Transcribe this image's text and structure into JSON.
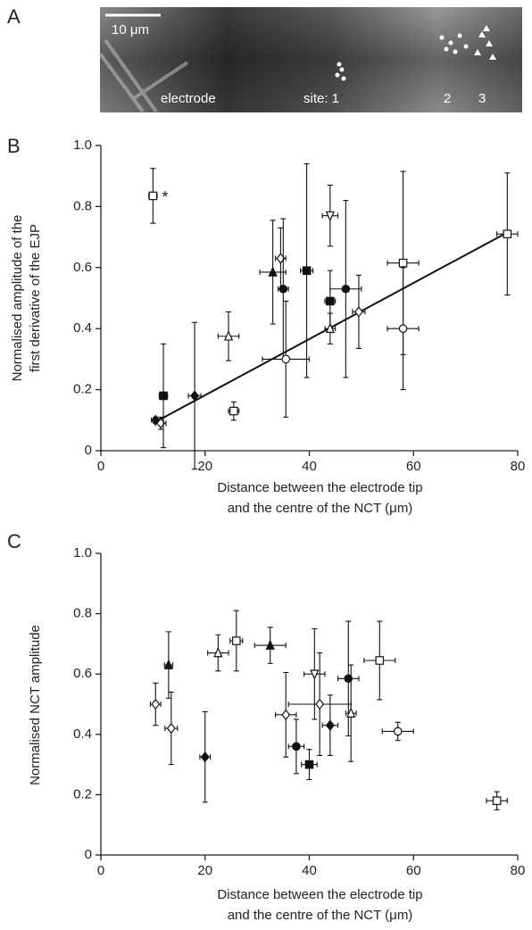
{
  "panel_a": {
    "panel_label": "A",
    "scale_bar": "10 μm",
    "labels": [
      "electrode",
      "site: 1",
      "2",
      "3"
    ]
  },
  "chart_data": [
    {
      "type": "scatter",
      "panel_label": "B",
      "y_label": [
        "Normalised amplitude of the",
        "first derivative of the EJP"
      ],
      "x_label": [
        "Distance between the electrode tip",
        "and the centre of the NCT (μm)"
      ],
      "annotation": "*",
      "xlim": [
        0,
        80
      ],
      "xticks": [
        0,
        20,
        40,
        60,
        80
      ],
      "ylim": [
        0,
        1
      ],
      "yticks": [
        0,
        {
          "value": 0.2,
          "label": "0.2"
        },
        {
          "value": 0.4,
          "label": "0.4"
        },
        {
          "value": 0.6,
          "label": "0.6"
        },
        {
          "value": 0.8,
          "label": "0.8"
        },
        {
          "value": 1,
          "label": "1.0"
        }
      ],
      "color": "#111",
      "series": [
        {
          "x": [
            10,
            10.5,
            11.5,
            12,
            18,
            24.5,
            25.5,
            33,
            34.5,
            35,
            35.5,
            39.5,
            44,
            44,
            44,
            47,
            49.5,
            58,
            58,
            78
          ],
          "values": [
            0.835,
            0.1,
            0.09,
            0.18,
            0.18,
            0.375,
            0.13,
            0.585,
            0.63,
            0.53,
            0.3,
            0.59,
            0.77,
            0.49,
            0.4,
            0.53,
            0.455,
            0.615,
            0.4,
            0.71
          ],
          "xerr": [
            0.8,
            0.8,
            1,
            0.8,
            1.2,
            2,
            1,
            2.5,
            1,
            1,
            4.5,
            1.2,
            1.5,
            1,
            1,
            3,
            1.2,
            3,
            3,
            2
          ],
          "yerr": [
            0.09,
            0.01,
            0.02,
            0.17,
            0.24,
            0.08,
            0.03,
            0.17,
            0.1,
            0.23,
            0.19,
            0.35,
            0.1,
            0.1,
            0.05,
            0.29,
            0.12,
            0.3,
            0.2,
            0.2
          ],
          "markers": [
            "square-open",
            "diamond-filled",
            "diamond-open",
            "square-filled",
            "diamond-filled",
            "triangle-open",
            "square-open",
            "triangle-filled",
            "diamond-open",
            "circle-filled",
            "circle-open",
            "square-filled",
            "triangle-down-open",
            "square-filled",
            "triangle-open",
            "circle-filled",
            "diamond-open",
            "square-open",
            "circle-open",
            "square-open"
          ]
        }
      ],
      "fit": {
        "x": [
          10,
          78
        ],
        "y": [
          0.09,
          0.715
        ]
      }
    },
    {
      "type": "scatter",
      "panel_label": "C",
      "y_label": [
        "Normalised NCT amplitude"
      ],
      "x_label": [
        "Distance between the electrode tip",
        "and the centre of the NCT (μm)"
      ],
      "xlim": [
        0,
        80
      ],
      "xticks": [
        0,
        20,
        40,
        60,
        80
      ],
      "ylim": [
        0,
        1
      ],
      "yticks": [
        0,
        {
          "value": 0.2,
          "label": "0.2"
        },
        {
          "value": 0.4,
          "label": "0.4"
        },
        {
          "value": 0.6,
          "label": "0.6"
        },
        {
          "value": 0.8,
          "label": "0.8"
        },
        {
          "value": 1,
          "label": "1.0"
        }
      ],
      "color": "#111",
      "series": [
        {
          "x": [
            10.5,
            13,
            13.5,
            20,
            22.5,
            26,
            32.5,
            35.5,
            37.5,
            40,
            41,
            42,
            44,
            47.5,
            48,
            53.5,
            57,
            76
          ],
          "values": [
            0.5,
            0.63,
            0.42,
            0.325,
            0.67,
            0.71,
            0.695,
            0.465,
            0.36,
            0.3,
            0.6,
            0.5,
            0.43,
            0.585,
            0.47,
            0.645,
            0.41,
            0.18
          ],
          "xerr": [
            1,
            0.8,
            1.2,
            1,
            2,
            1.2,
            3,
            2,
            1.5,
            1.5,
            2,
            6,
            1.5,
            2,
            1,
            3,
            3,
            2
          ],
          "yerr": [
            0.07,
            0.11,
            0.12,
            0.15,
            0.06,
            0.1,
            0.06,
            0.14,
            0.09,
            0.05,
            0.15,
            0.17,
            0.1,
            0.19,
            0.16,
            0.13,
            0.03,
            0.03
          ],
          "markers": [
            "diamond-open",
            "triangle-filled",
            "diamond-open",
            "diamond-filled",
            "triangle-open",
            "square-open",
            "triangle-filled",
            "diamond-open",
            "circle-filled",
            "square-filled",
            "triangle-down-open",
            "diamond-open",
            "diamond-filled",
            "circle-filled",
            "triangle-open",
            "square-open",
            "circle-open",
            "square-open"
          ]
        }
      ]
    }
  ]
}
